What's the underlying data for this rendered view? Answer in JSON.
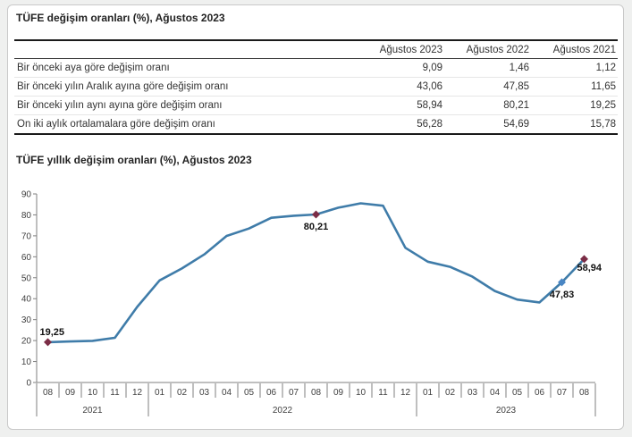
{
  "page": {
    "table_title": "TÜFE değişim oranları (%), Ağustos 2023",
    "chart_title": "TÜFE yıllık değişim oranları (%), Ağustos 2023"
  },
  "table": {
    "columns": [
      "Ağustos 2023",
      "Ağustos 2022",
      "Ağustos 2021"
    ],
    "rows": [
      {
        "label": "Bir önceki aya göre değişim oranı",
        "values": [
          "9,09",
          "1,46",
          "1,12"
        ]
      },
      {
        "label": "Bir önceki yılın Aralık ayına göre değişim oranı",
        "values": [
          "43,06",
          "47,85",
          "11,65"
        ]
      },
      {
        "label": "Bir önceki yılın aynı ayına göre değişim oranı",
        "values": [
          "58,94",
          "80,21",
          "19,25"
        ]
      },
      {
        "label": "On iki aylık ortalamalara göre değişim oranı",
        "values": [
          "56,28",
          "54,69",
          "15,78"
        ]
      }
    ]
  },
  "chart_data": {
    "type": "line",
    "title": "TÜFE yıllık değişim oranları (%), Ağustos 2023",
    "x": [
      "08",
      "09",
      "10",
      "11",
      "12",
      "01",
      "02",
      "03",
      "04",
      "05",
      "06",
      "07",
      "08",
      "09",
      "10",
      "11",
      "12",
      "01",
      "02",
      "03",
      "04",
      "05",
      "06",
      "07",
      "08"
    ],
    "year_groups": [
      {
        "year": "2021",
        "count": 5
      },
      {
        "year": "2022",
        "count": 12
      },
      {
        "year": "2023",
        "count": 8
      }
    ],
    "values": [
      19.25,
      19.58,
      19.89,
      21.31,
      36.08,
      48.69,
      54.44,
      61.14,
      69.97,
      73.5,
      78.62,
      79.6,
      80.21,
      83.45,
      85.51,
      84.39,
      64.27,
      57.68,
      55.18,
      50.51,
      43.68,
      39.59,
      38.21,
      47.83,
      58.94
    ],
    "ylim": [
      0,
      90
    ],
    "ytick_step": 10,
    "xlabel": "",
    "ylabel": "",
    "grid": false,
    "legend": false,
    "line_color": "#3f7ca9",
    "annotations": [
      {
        "index": 0,
        "label": "19,25",
        "marker_color": "#7b2d46",
        "position": "above-left"
      },
      {
        "index": 12,
        "label": "80,21",
        "marker_color": "#7b2d46",
        "position": "below"
      },
      {
        "index": 23,
        "label": "47,83",
        "marker_color": "#4a86c4",
        "position": "below"
      },
      {
        "index": 24,
        "label": "58,94",
        "marker_color": "#7b2d46",
        "position": "right-below"
      }
    ]
  }
}
